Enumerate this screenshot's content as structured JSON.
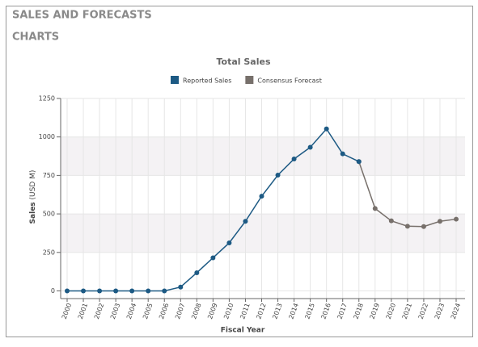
{
  "header": {
    "title": "SALES AND FORECASTS",
    "section": "CHARTS"
  },
  "chart_data": {
    "type": "line",
    "title": "Total Sales",
    "categories": [
      "2000",
      "2001",
      "2002",
      "2003",
      "2004",
      "2005",
      "2006",
      "2007",
      "2008",
      "2009",
      "2010",
      "2011",
      "2012",
      "2013",
      "2014",
      "2015",
      "2016",
      "2017",
      "2018",
      "2019",
      "2020",
      "2021",
      "2022",
      "2023",
      "2024"
    ],
    "series": [
      {
        "name": "Reported Sales",
        "color": "#1d5a84",
        "values": [
          0,
          0,
          0,
          0,
          0,
          0,
          0,
          25,
          118,
          215,
          312,
          452,
          615,
          752,
          857,
          933,
          1052,
          890,
          840,
          null,
          null,
          null,
          null,
          null,
          null
        ]
      },
      {
        "name": "Consensus Forecast",
        "color": "#77706b",
        "values": [
          null,
          null,
          null,
          null,
          null,
          null,
          null,
          null,
          null,
          null,
          null,
          null,
          null,
          null,
          null,
          null,
          null,
          null,
          840,
          535,
          455,
          420,
          418,
          452,
          466
        ]
      }
    ],
    "y_label": "Sales",
    "y_unit": "(USD M)",
    "x_label": "Fiscal Year",
    "ylim": [
      -50,
      1250
    ],
    "yticks": [
      0,
      250,
      500,
      750,
      1000,
      1250
    ],
    "grid": true,
    "legend": "top"
  }
}
